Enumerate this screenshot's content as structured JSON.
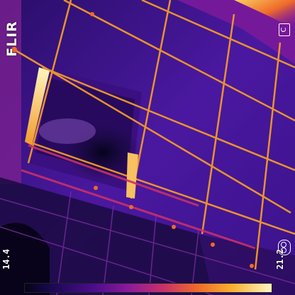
{
  "brand": {
    "name": "FLIR"
  },
  "unit_badge": {
    "label": "C"
  },
  "scale": {
    "min": "14.4",
    "max": "21.2"
  },
  "icons": {
    "emissivity": "emissivity-icon"
  }
}
